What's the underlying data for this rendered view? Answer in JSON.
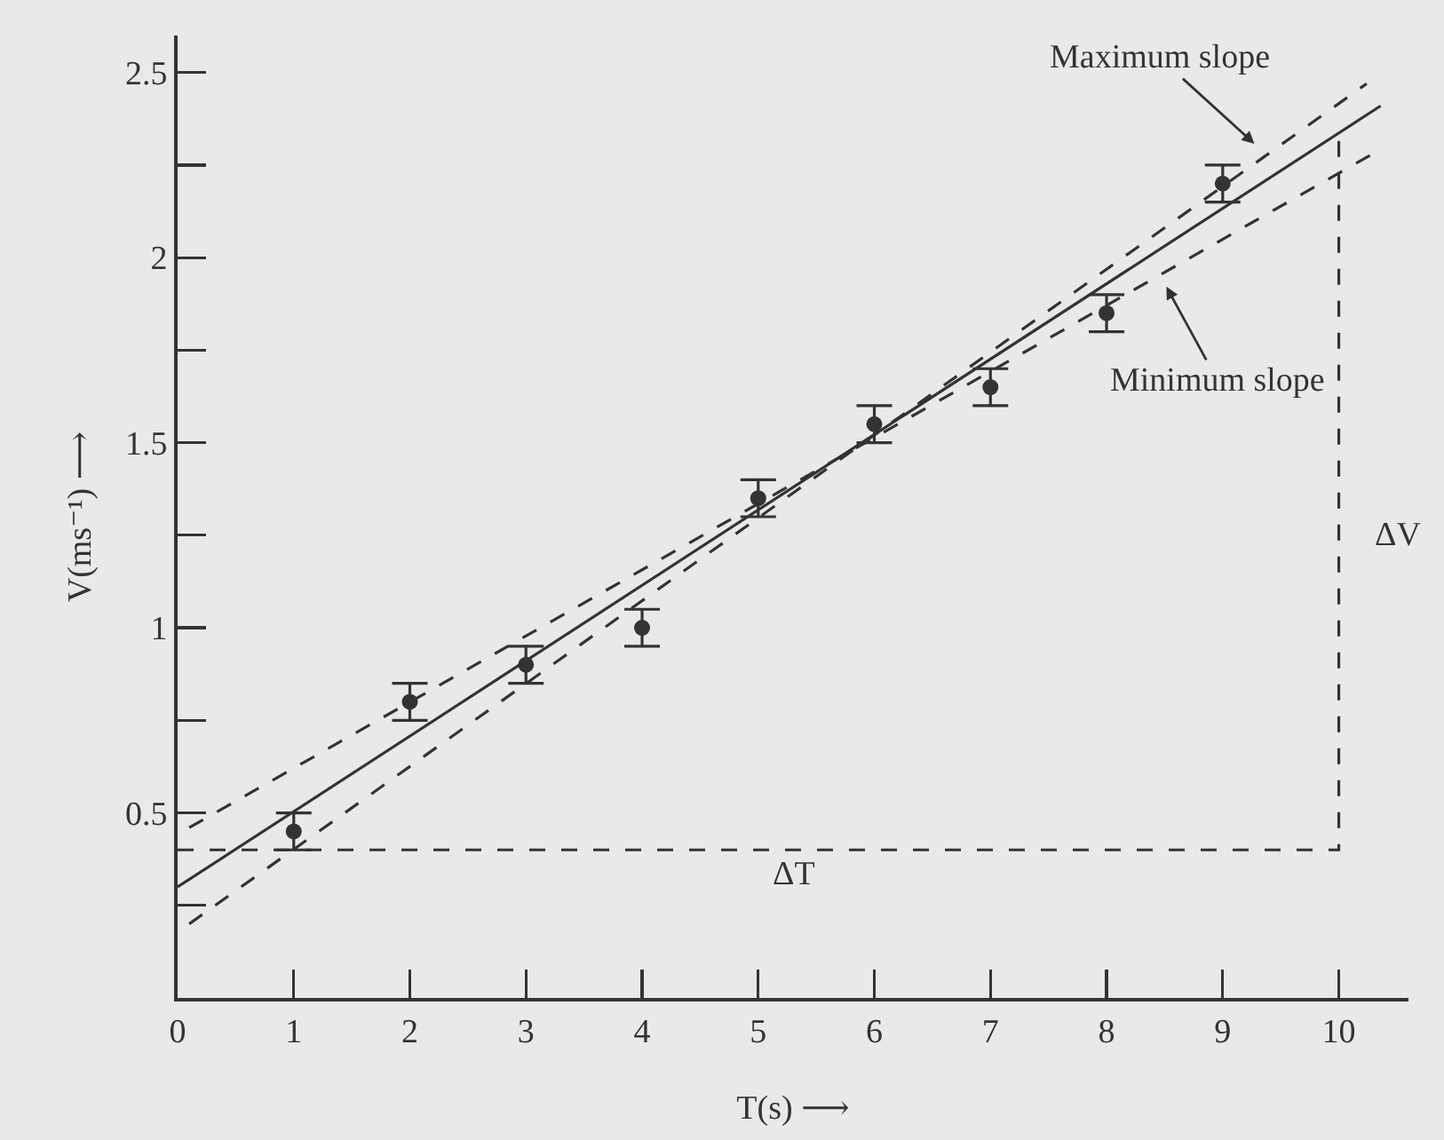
{
  "chart_data": {
    "type": "scatter",
    "xlabel": "T(s) ⟶",
    "ylabel": "V(ms⁻¹) ⟶",
    "xlim": [
      0,
      10.6
    ],
    "ylim": [
      0,
      2.6
    ],
    "xticks": [
      0,
      1,
      2,
      3,
      4,
      5,
      6,
      7,
      8,
      9,
      10
    ],
    "yticks": [
      {
        "value": 0.25,
        "label": null
      },
      0.5,
      {
        "value": 0.75,
        "label": null
      },
      1.0,
      {
        "value": 1.25,
        "label": null
      },
      1.5,
      {
        "value": 1.75,
        "label": null
      },
      2.0,
      {
        "value": 2.25,
        "label": null
      },
      2.5
    ],
    "grid": false,
    "series": [
      {
        "type": "line",
        "color": "#333333",
        "x": [
          0,
          10.36
        ],
        "values": [
          0.3,
          2.41
        ],
        "line_style": "solid",
        "marker": "none"
      },
      {
        "type": "line",
        "color": "#333333",
        "x": [
          0.1,
          10.24
        ],
        "values": [
          0.2,
          2.47
        ],
        "line_style": "dashed",
        "marker": "none"
      },
      {
        "type": "line",
        "color": "#333333",
        "x": [
          0.1,
          10.29
        ],
        "values": [
          0.46,
          2.28
        ],
        "line_style": "dashed",
        "marker": "none"
      },
      {
        "type": "line",
        "color": "#333333",
        "x": [
          0,
          10,
          10
        ],
        "values": [
          0.4,
          0.4,
          2.34
        ],
        "line_style": "dashed",
        "marker": "none"
      },
      {
        "color": "#333333",
        "marker": "circle",
        "x": [
          1,
          2,
          3,
          4,
          5,
          6,
          7,
          8,
          9
        ],
        "values": [
          0.45,
          0.8,
          0.9,
          1.0,
          1.35,
          1.55,
          1.65,
          1.85,
          2.2
        ],
        "errors": [
          0.05,
          0.05,
          0.05,
          0.05,
          0.05,
          0.05,
          0.05,
          0.05,
          0.05
        ]
      }
    ],
    "annotations": [
      "Maximum slope",
      {
        "text": "Minimum slope",
        "x": 8.5,
        "y": 1.93
      },
      "ΔT",
      "ΔV"
    ]
  }
}
